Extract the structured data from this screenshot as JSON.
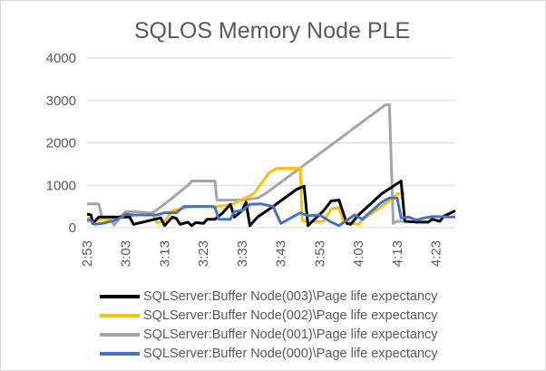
{
  "chart_data": {
    "type": "line",
    "title": "SQLOS Memory Node PLE",
    "xlabel": "",
    "ylabel": "",
    "ylim": [
      0,
      4000
    ],
    "yticks": [
      "0",
      "1000",
      "2000",
      "3000",
      "4000"
    ],
    "xlim": [
      173,
      268
    ],
    "xticks": [
      {
        "label": "2:53",
        "t": 173
      },
      {
        "label": "3:03",
        "t": 183
      },
      {
        "label": "3:13",
        "t": 193
      },
      {
        "label": "3:23",
        "t": 203
      },
      {
        "label": "3:33",
        "t": 213
      },
      {
        "label": "3:43",
        "t": 223
      },
      {
        "label": "3:53",
        "t": 233
      },
      {
        "label": "4:03",
        "t": 243
      },
      {
        "label": "4:13",
        "t": 253
      },
      {
        "label": "4:23",
        "t": 263
      }
    ],
    "grid": true,
    "legend_position": "bottom",
    "series": [
      {
        "name": "SQLServer:Buffer Node(003)\\Page life expectancy",
        "color": "#000000",
        "points": [
          [
            173,
            320
          ],
          [
            174,
            300
          ],
          [
            174.5,
            100
          ],
          [
            176,
            250
          ],
          [
            184,
            250
          ],
          [
            185,
            80
          ],
          [
            192,
            230
          ],
          [
            193,
            50
          ],
          [
            195,
            250
          ],
          [
            196,
            220
          ],
          [
            197,
            80
          ],
          [
            199,
            130
          ],
          [
            200,
            50
          ],
          [
            201,
            120
          ],
          [
            203,
            100
          ],
          [
            204,
            200
          ],
          [
            206,
            200
          ],
          [
            208,
            350
          ],
          [
            210,
            550
          ],
          [
            211,
            250
          ],
          [
            213,
            400
          ],
          [
            214,
            600
          ],
          [
            215,
            50
          ],
          [
            217,
            250
          ],
          [
            221,
            500
          ],
          [
            227,
            900
          ],
          [
            229,
            980
          ],
          [
            230,
            50
          ],
          [
            234,
            400
          ],
          [
            236,
            630
          ],
          [
            238,
            650
          ],
          [
            240,
            100
          ],
          [
            241,
            80
          ],
          [
            243,
            300
          ],
          [
            249,
            800
          ],
          [
            254,
            1100
          ],
          [
            255,
            150
          ],
          [
            258,
            130
          ],
          [
            261,
            130
          ],
          [
            262,
            200
          ],
          [
            264,
            150
          ],
          [
            265,
            270
          ],
          [
            268,
            400
          ]
        ]
      },
      {
        "name": "SQLServer:Buffer Node(002)\\Page life expectancy",
        "color": "#ffc000",
        "points": [
          [
            173,
            230
          ],
          [
            174.5,
            170
          ],
          [
            175,
            150
          ],
          [
            176,
            200
          ],
          [
            178,
            200
          ],
          [
            180,
            240
          ],
          [
            183,
            250
          ],
          [
            185,
            300
          ],
          [
            190,
            300
          ],
          [
            191,
            120
          ],
          [
            193,
            150
          ],
          [
            195,
            400
          ],
          [
            200,
            500
          ],
          [
            206,
            500
          ],
          [
            210,
            530
          ],
          [
            216,
            800
          ],
          [
            220,
            1300
          ],
          [
            222,
            1400
          ],
          [
            228,
            1400
          ],
          [
            228.5,
            170
          ],
          [
            231,
            140
          ],
          [
            234,
            150
          ],
          [
            236,
            450
          ],
          [
            238,
            470
          ],
          [
            239,
            200
          ],
          [
            241,
            100
          ],
          [
            243,
            80
          ],
          [
            245,
            250
          ],
          [
            249,
            500
          ],
          [
            252,
            700
          ],
          [
            253,
            800
          ],
          [
            255,
            800
          ]
        ]
      },
      {
        "name": "SQLServer:Buffer Node(001)\\Page life expectancy",
        "color": "#a5a5a5",
        "points": [
          [
            173,
            560
          ],
          [
            176,
            560
          ],
          [
            177,
            200
          ],
          [
            179,
            200
          ],
          [
            180,
            60
          ],
          [
            182,
            300
          ],
          [
            183,
            380
          ],
          [
            185,
            380
          ],
          [
            189,
            350
          ],
          [
            190,
            350
          ],
          [
            195,
            700
          ],
          [
            199,
            1000
          ],
          [
            200,
            1100
          ],
          [
            206,
            1100
          ],
          [
            206.5,
            650
          ],
          [
            213,
            650
          ],
          [
            217,
            700
          ],
          [
            219,
            800
          ],
          [
            250,
            2900
          ],
          [
            251,
            2900
          ],
          [
            252,
            100
          ],
          [
            253,
            150
          ],
          [
            255,
            150
          ]
        ]
      },
      {
        "name": "SQLServer:Buffer Node(000)\\Page life expectancy",
        "color": "#4472c4",
        "points": [
          [
            173,
            180
          ],
          [
            174,
            170
          ],
          [
            175,
            80
          ],
          [
            177,
            100
          ],
          [
            180,
            170
          ],
          [
            182,
            250
          ],
          [
            183,
            320
          ],
          [
            185,
            300
          ],
          [
            191,
            300
          ],
          [
            193,
            350
          ],
          [
            196,
            350
          ],
          [
            198,
            500
          ],
          [
            205,
            500
          ],
          [
            206,
            480
          ],
          [
            207,
            200
          ],
          [
            210,
            200
          ],
          [
            211,
            380
          ],
          [
            213,
            400
          ],
          [
            215,
            550
          ],
          [
            218,
            560
          ],
          [
            221,
            500
          ],
          [
            223,
            100
          ],
          [
            228,
            350
          ],
          [
            230,
            280
          ],
          [
            233,
            300
          ],
          [
            236,
            130
          ],
          [
            238,
            50
          ],
          [
            242,
            300
          ],
          [
            244,
            200
          ],
          [
            249,
            600
          ],
          [
            251,
            700
          ],
          [
            253,
            700
          ],
          [
            254,
            230
          ],
          [
            256,
            250
          ],
          [
            258,
            180
          ],
          [
            260,
            230
          ],
          [
            262,
            260
          ],
          [
            268,
            250
          ]
        ]
      }
    ]
  }
}
